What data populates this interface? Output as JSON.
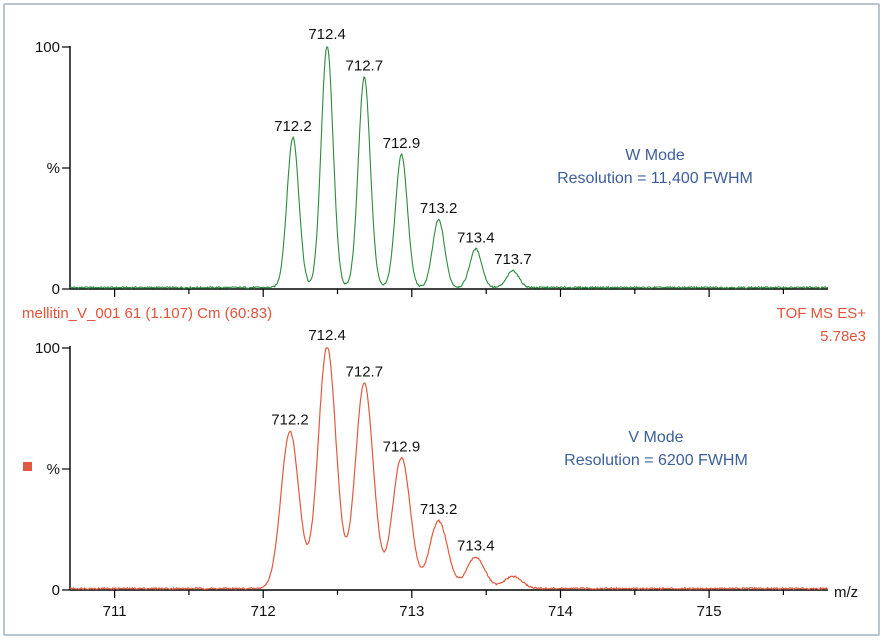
{
  "chart_data": [
    {
      "type": "line",
      "x_unit_label": "",
      "y_ticks": [
        "100",
        "%",
        "0"
      ],
      "ylim": [
        0,
        100
      ],
      "xlim": [
        710.7,
        715.8
      ],
      "series_color": "#2d8a3e",
      "peaks": [
        {
          "x": 712.2,
          "y": 62,
          "label": "712.2"
        },
        {
          "x": 712.43,
          "y": 100,
          "label": "712.4"
        },
        {
          "x": 712.68,
          "y": 87,
          "label": "712.7"
        },
        {
          "x": 712.93,
          "y": 55,
          "label": "712.9"
        },
        {
          "x": 713.18,
          "y": 28,
          "label": "713.2"
        },
        {
          "x": 713.43,
          "y": 16,
          "label": "713.4"
        },
        {
          "x": 713.68,
          "y": 7,
          "label": "713.7"
        }
      ],
      "annotation": [
        "W Mode",
        "Resolution = 11,400 FWHM"
      ],
      "resolution_fwhm": 11400
    },
    {
      "type": "line",
      "ylim": [
        0,
        100
      ],
      "xlim": [
        710.7,
        715.8
      ],
      "y_ticks": [
        "100",
        "%",
        "0"
      ],
      "x_ticks": [
        "711",
        "712",
        "713",
        "714",
        "715"
      ],
      "xlabel": "m/z",
      "series_color": "#e05a3f",
      "peaks": [
        {
          "x": 712.18,
          "y": 65,
          "label": "712.2"
        },
        {
          "x": 712.43,
          "y": 100,
          "label": "712.4"
        },
        {
          "x": 712.68,
          "y": 85,
          "label": "712.7"
        },
        {
          "x": 712.93,
          "y": 54,
          "label": "712.9"
        },
        {
          "x": 713.18,
          "y": 28,
          "label": "713.2"
        },
        {
          "x": 713.43,
          "y": 13,
          "label": "713.4"
        },
        {
          "x": 713.68,
          "y": 5,
          "label": ""
        }
      ],
      "annotation": [
        "V Mode",
        "Resolution = 6200 FWHM"
      ],
      "resolution_fwhm": 6200
    }
  ],
  "header": {
    "left": "mellitin_V_001 61 (1.107) Cm (60:83)",
    "right_line1": "TOF MS ES+",
    "right_line2": "5.78e3"
  }
}
